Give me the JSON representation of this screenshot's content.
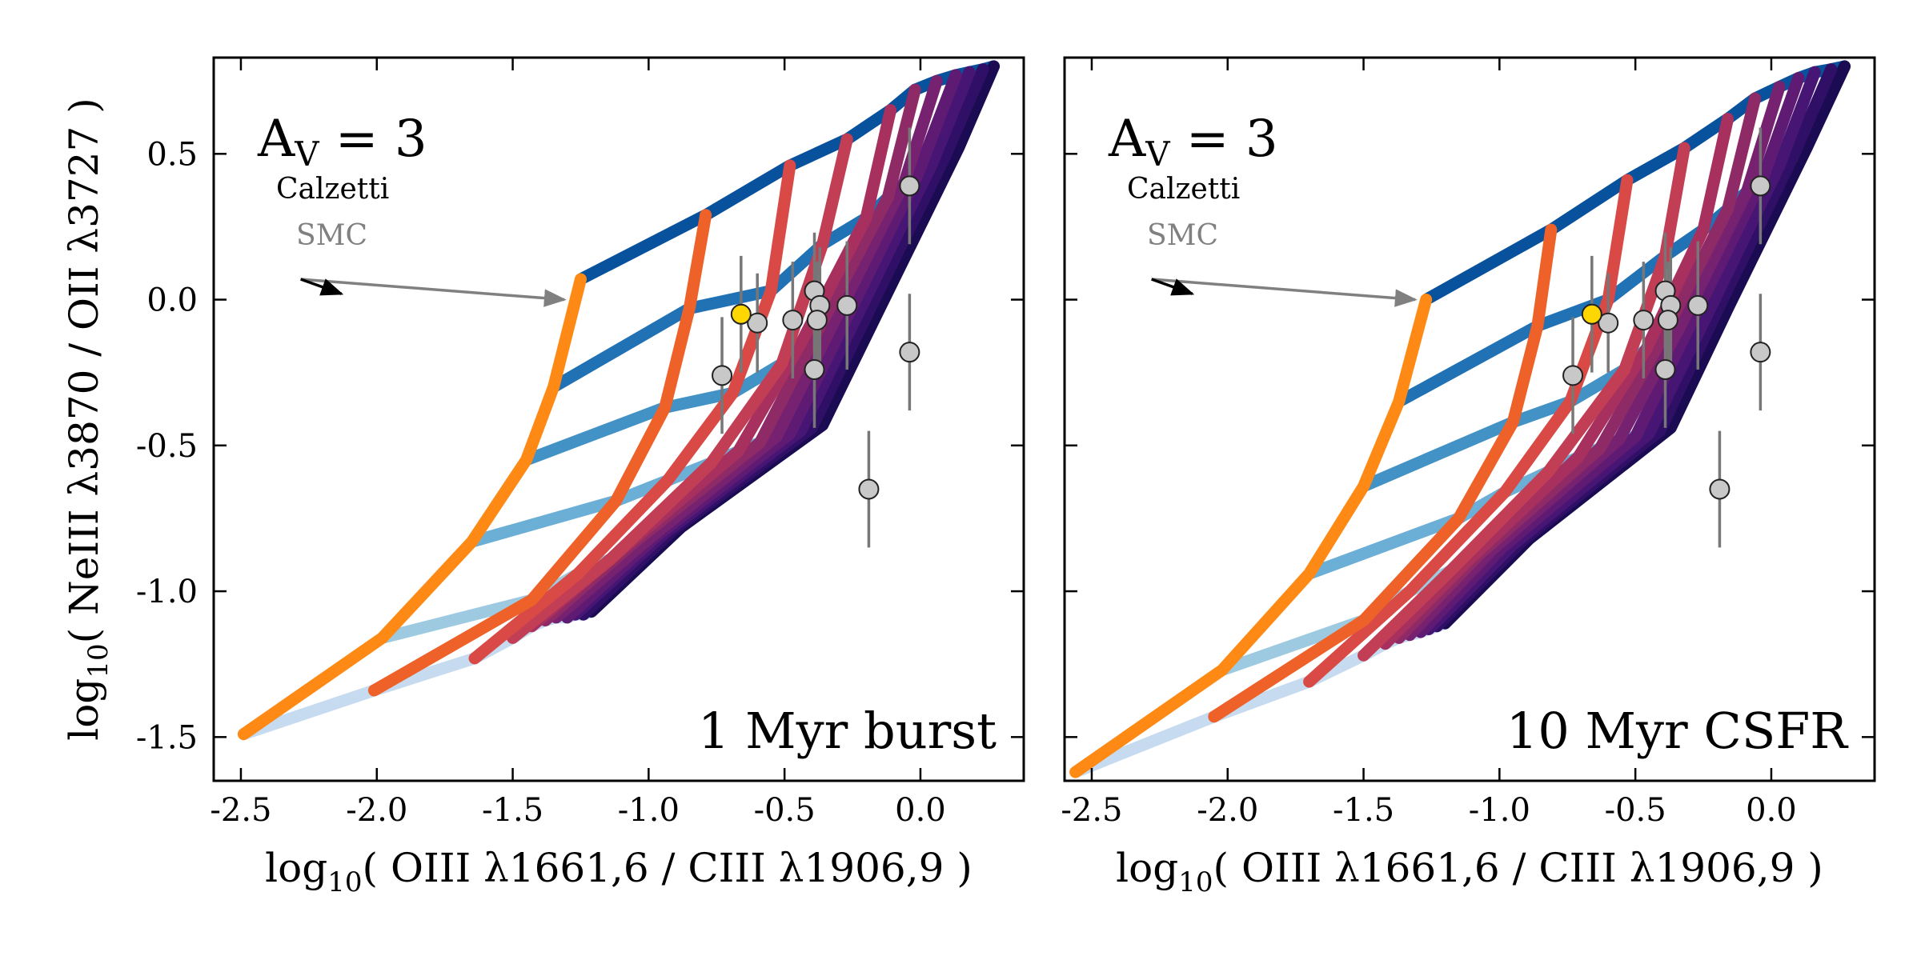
{
  "ylabel": {
    "prefix": "log",
    "sub": "10",
    "rest": "( NeIII λ3870 / OII λ3727 )"
  },
  "xlabel": {
    "prefix": "log",
    "sub": "10",
    "rest": "( OIII λ1661,6 / CIII λ1906,9 )"
  },
  "av": {
    "main": "A",
    "sub": "V",
    "rest": " = 3"
  },
  "calzetti_label": "Calzetti",
  "smc_label": "SMC",
  "colors": {
    "blues": [
      "#08306b",
      "#08519c",
      "#2171b5",
      "#4292c6",
      "#6baed6",
      "#9ecae1",
      "#c6dbef"
    ],
    "ages": [
      "#fe8a15",
      "#ee6128",
      "#d94a46",
      "#c23e55",
      "#a8305f",
      "#8e2a66",
      "#762270",
      "#5f1b73",
      "#471674",
      "#301067",
      "#1a0b52"
    ],
    "point_fill": "#c8c8c8",
    "highlight_fill": "#ffd700",
    "errorbar": "#777777",
    "smc_arrow": "#808080",
    "calzetti_arrow": "#000000"
  },
  "chart_data": [
    {
      "type": "line",
      "panel_label": "1 Myr burst",
      "xlim": [
        -2.6,
        0.38
      ],
      "ylim": [
        -1.65,
        0.83
      ],
      "xticks": [
        "-2.5",
        "-2.0",
        "-1.5",
        "-1.0",
        "-0.5",
        "0.0"
      ],
      "yticks": [
        "-1.5",
        "-1.0",
        "-0.5",
        "0.0",
        "0.5"
      ],
      "grid": false,
      "age_tracks": [
        {
          "x": [
            -2.49,
            -1.98,
            -1.65,
            -1.45,
            -1.35,
            -1.25
          ],
          "y": [
            -1.49,
            -1.16,
            -0.83,
            -0.55,
            -0.3,
            0.07
          ]
        },
        {
          "x": [
            -2.01,
            -1.43,
            -1.12,
            -0.94,
            -0.85,
            -0.79
          ],
          "y": [
            -1.34,
            -1.03,
            -0.69,
            -0.37,
            -0.03,
            0.29
          ]
        },
        {
          "x": [
            -1.64,
            -1.26,
            -0.93,
            -0.69,
            -0.55,
            -0.48
          ],
          "y": [
            -1.23,
            -0.94,
            -0.62,
            -0.32,
            0.03,
            0.46
          ]
        },
        {
          "x": [
            -1.5,
            -1.14,
            -0.77,
            -0.51,
            -0.36,
            -0.27
          ],
          "y": [
            -1.16,
            -0.89,
            -0.56,
            -0.22,
            0.19,
            0.55
          ]
        },
        {
          "x": [
            -1.43,
            -1.09,
            -0.67,
            -0.44,
            -0.2,
            -0.11
          ],
          "y": [
            -1.12,
            -0.85,
            -0.52,
            -0.15,
            0.28,
            0.65
          ]
        },
        {
          "x": [
            -1.38,
            -1.05,
            -0.59,
            -0.38,
            -0.12,
            -0.02
          ],
          "y": [
            -1.1,
            -0.83,
            -0.49,
            -0.11,
            0.35,
            0.72
          ]
        },
        {
          "x": [
            -1.34,
            -1.0,
            -0.53,
            -0.32,
            -0.06,
            0.06
          ],
          "y": [
            -1.09,
            -0.82,
            -0.47,
            -0.08,
            0.4,
            0.75
          ]
        },
        {
          "x": [
            -1.3,
            -0.97,
            -0.48,
            -0.27,
            -0.01,
            0.13
          ],
          "y": [
            -1.09,
            -0.81,
            -0.46,
            -0.06,
            0.43,
            0.77
          ]
        },
        {
          "x": [
            -1.27,
            -0.94,
            -0.44,
            -0.23,
            0.04,
            0.18
          ],
          "y": [
            -1.08,
            -0.8,
            -0.45,
            -0.05,
            0.46,
            0.78
          ]
        },
        {
          "x": [
            -1.24,
            -0.91,
            -0.4,
            -0.19,
            0.09,
            0.23
          ],
          "y": [
            -1.08,
            -0.79,
            -0.44,
            -0.04,
            0.49,
            0.79
          ]
        },
        {
          "x": [
            -1.21,
            -0.88,
            -0.36,
            -0.15,
            0.14,
            0.27
          ],
          "y": [
            -1.07,
            -0.78,
            -0.43,
            -0.03,
            0.52,
            0.8
          ]
        }
      ],
      "calzetti_arrow": {
        "x": [
          -2.28,
          -2.13
        ],
        "y": [
          0.07,
          0.02
        ]
      },
      "smc_arrow": {
        "x": [
          -2.28,
          -1.31
        ],
        "y": [
          0.07,
          0.0
        ]
      },
      "points": [
        {
          "x": -0.73,
          "y": -0.26,
          "yerr": 0.2
        },
        {
          "x": -0.6,
          "y": -0.08,
          "yerr": 0.17
        },
        {
          "x": -0.47,
          "y": -0.07,
          "yerr": 0.2
        },
        {
          "x": -0.39,
          "y": 0.03,
          "yerr": 0.2
        },
        {
          "x": -0.37,
          "y": -0.02,
          "yerr": 0.2
        },
        {
          "x": -0.38,
          "y": -0.07,
          "yerr": 0.2
        },
        {
          "x": -0.39,
          "y": -0.24,
          "yerr": 0.2
        },
        {
          "x": -0.27,
          "y": -0.02,
          "yerr": 0.22
        },
        {
          "x": -0.04,
          "y": 0.39,
          "yerr": 0.2
        },
        {
          "x": -0.04,
          "y": -0.18,
          "yerr": 0.2
        },
        {
          "x": -0.19,
          "y": -0.65,
          "yerr": 0.2
        }
      ],
      "highlight_point": {
        "x": -0.66,
        "y": -0.05,
        "yerr": 0.2
      }
    },
    {
      "type": "line",
      "panel_label": "10 Myr CSFR",
      "xlim": [
        -2.6,
        0.38
      ],
      "ylim": [
        -1.65,
        0.83
      ],
      "xticks": [
        "-2.5",
        "-2.0",
        "-1.5",
        "-1.0",
        "-0.5",
        "0.0"
      ],
      "yticks": [
        "-1.5",
        "-1.0",
        "-0.5",
        "0.0",
        "0.5"
      ],
      "grid": false,
      "age_tracks": [
        {
          "x": [
            -2.56,
            -2.02,
            -1.7,
            -1.5,
            -1.37,
            -1.27
          ],
          "y": [
            -1.62,
            -1.27,
            -0.94,
            -0.64,
            -0.35,
            0.0
          ]
        },
        {
          "x": [
            -2.05,
            -1.5,
            -1.15,
            -0.95,
            -0.86,
            -0.81
          ],
          "y": [
            -1.43,
            -1.1,
            -0.75,
            -0.42,
            -0.09,
            0.24
          ]
        },
        {
          "x": [
            -1.7,
            -1.33,
            -0.98,
            -0.74,
            -0.6,
            -0.53
          ],
          "y": [
            -1.31,
            -1.0,
            -0.66,
            -0.35,
            0.0,
            0.41
          ]
        },
        {
          "x": [
            -1.5,
            -1.18,
            -0.82,
            -0.54,
            -0.39,
            -0.32
          ],
          "y": [
            -1.22,
            -0.93,
            -0.59,
            -0.24,
            0.15,
            0.52
          ]
        },
        {
          "x": [
            -1.42,
            -1.11,
            -0.71,
            -0.46,
            -0.25,
            -0.16
          ],
          "y": [
            -1.18,
            -0.89,
            -0.54,
            -0.17,
            0.24,
            0.62
          ]
        },
        {
          "x": [
            -1.37,
            -1.07,
            -0.63,
            -0.4,
            -0.16,
            -0.06
          ],
          "y": [
            -1.16,
            -0.87,
            -0.51,
            -0.13,
            0.31,
            0.69
          ]
        },
        {
          "x": [
            -1.33,
            -1.03,
            -0.56,
            -0.34,
            -0.09,
            0.03
          ],
          "y": [
            -1.15,
            -0.86,
            -0.48,
            -0.1,
            0.37,
            0.73
          ]
        },
        {
          "x": [
            -1.29,
            -0.99,
            -0.5,
            -0.29,
            -0.03,
            0.1
          ],
          "y": [
            -1.14,
            -0.85,
            -0.47,
            -0.07,
            0.42,
            0.76
          ]
        },
        {
          "x": [
            -1.26,
            -0.95,
            -0.45,
            -0.24,
            0.03,
            0.16
          ],
          "y": [
            -1.13,
            -0.84,
            -0.46,
            -0.06,
            0.46,
            0.78
          ]
        },
        {
          "x": [
            -1.23,
            -0.92,
            -0.41,
            -0.2,
            0.08,
            0.22
          ],
          "y": [
            -1.12,
            -0.83,
            -0.45,
            -0.04,
            0.49,
            0.79
          ]
        },
        {
          "x": [
            -1.2,
            -0.89,
            -0.37,
            -0.16,
            0.13,
            0.27
          ],
          "y": [
            -1.11,
            -0.82,
            -0.44,
            -0.03,
            0.52,
            0.8
          ]
        }
      ],
      "calzetti_arrow": {
        "x": [
          -2.28,
          -2.13
        ],
        "y": [
          0.07,
          0.02
        ]
      },
      "smc_arrow": {
        "x": [
          -2.28,
          -1.31
        ],
        "y": [
          0.07,
          0.0
        ]
      },
      "points": [
        {
          "x": -0.73,
          "y": -0.26,
          "yerr": 0.2
        },
        {
          "x": -0.6,
          "y": -0.08,
          "yerr": 0.17
        },
        {
          "x": -0.47,
          "y": -0.07,
          "yerr": 0.2
        },
        {
          "x": -0.39,
          "y": 0.03,
          "yerr": 0.2
        },
        {
          "x": -0.37,
          "y": -0.02,
          "yerr": 0.2
        },
        {
          "x": -0.38,
          "y": -0.07,
          "yerr": 0.2
        },
        {
          "x": -0.39,
          "y": -0.24,
          "yerr": 0.2
        },
        {
          "x": -0.27,
          "y": -0.02,
          "yerr": 0.22
        },
        {
          "x": -0.04,
          "y": 0.39,
          "yerr": 0.2
        },
        {
          "x": -0.04,
          "y": -0.18,
          "yerr": 0.2
        },
        {
          "x": -0.19,
          "y": -0.65,
          "yerr": 0.2
        }
      ],
      "highlight_point": {
        "x": -0.66,
        "y": -0.05,
        "yerr": 0.2
      }
    }
  ]
}
